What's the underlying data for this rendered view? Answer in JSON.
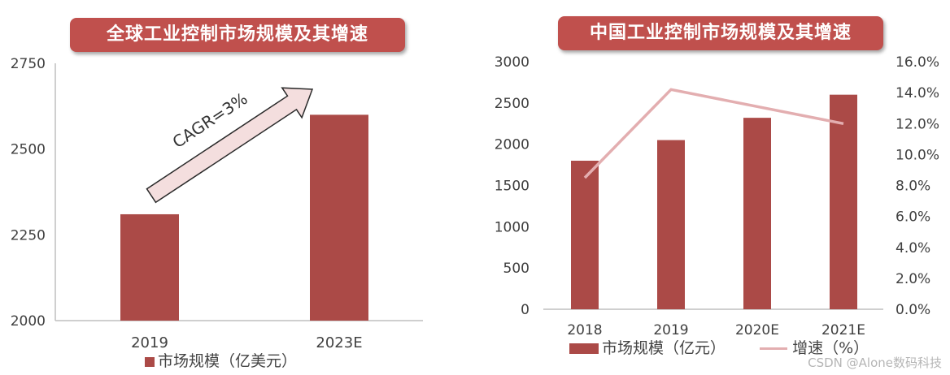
{
  "colors": {
    "bar": "#ab4a47",
    "line": "#e3aeb0",
    "banner": "#c0504d",
    "arrow_fill": "#f4dede",
    "arrow_stroke": "#2a2a2a",
    "axis": "#bfbfbf",
    "tick_text": "#404040"
  },
  "watermark": "CSDN @Alone数码科技",
  "chart_data": [
    {
      "type": "bar",
      "title": "全球工业控制市场规模及其增速",
      "categories": [
        "2019",
        "2023E"
      ],
      "series": [
        {
          "name": "市场规模（亿美元）",
          "values": [
            2310,
            2600
          ]
        }
      ],
      "ylim": [
        2000,
        2750
      ],
      "yticks": [
        "2000",
        "2250",
        "2500",
        "2750"
      ],
      "grid": false,
      "legend": "bottom",
      "annotation": "CAGR=3%"
    },
    {
      "type": "bar",
      "title": "中国工业控制市场规模及其增速",
      "categories": [
        "2018",
        "2019",
        "2020E",
        "2021E"
      ],
      "series": [
        {
          "name": "市场规模（亿元）",
          "type": "bar",
          "axis": "left",
          "values": [
            1800,
            2050,
            2320,
            2600
          ]
        },
        {
          "name": "增速（%）",
          "type": "line",
          "axis": "right",
          "values": [
            8.5,
            14.2,
            13.1,
            12.0
          ]
        }
      ],
      "ylim": [
        0,
        3000
      ],
      "yticks": [
        "0",
        "500",
        "1000",
        "1500",
        "2000",
        "2500",
        "3000"
      ],
      "y2lim": [
        0,
        16
      ],
      "y2ticks": [
        "0.0%",
        "2.0%",
        "4.0%",
        "6.0%",
        "8.0%",
        "10.0%",
        "12.0%",
        "14.0%",
        "16.0%"
      ],
      "grid": false,
      "legend": "bottom"
    }
  ]
}
